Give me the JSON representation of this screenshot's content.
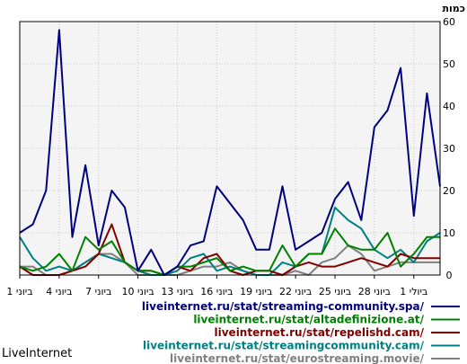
{
  "brand": "LiveInternet",
  "chart_data": {
    "type": "line",
    "ylabel": "כמות",
    "ylim": [
      0,
      60
    ],
    "yticks": [
      0,
      10,
      20,
      30,
      40,
      50,
      60
    ],
    "grid": true,
    "legend_position": "bottom-right",
    "x_tick_labels": [
      "1 ביוני",
      "4 ביוני",
      "7 ביוני",
      "10 ביוני",
      "13 ביוני",
      "16 ביוני",
      "19 ביוני",
      "22 ביוני",
      "25 ביוני",
      "28 ביוני",
      "1 ביולי"
    ],
    "x_tick_indices": [
      0,
      3,
      6,
      9,
      12,
      15,
      18,
      21,
      24,
      27,
      30
    ],
    "series": [
      {
        "name": "liveinternet.ru/stat/streaming-community.spa/",
        "color": "#000080",
        "values": [
          10,
          12,
          20,
          58,
          9,
          26,
          7,
          20,
          16,
          1,
          6,
          0,
          2,
          7,
          8,
          21,
          17,
          13,
          6,
          6,
          21,
          6,
          8,
          10,
          18,
          22,
          13,
          35,
          39,
          49,
          14,
          43,
          21
        ]
      },
      {
        "name": "liveinternet.ru/stat/altadefinizione.at/",
        "color": "#008000",
        "values": [
          2,
          1,
          2,
          5,
          1,
          9,
          6,
          8,
          3,
          1,
          1,
          0,
          2,
          2,
          3,
          4,
          1,
          2,
          1,
          1,
          7,
          2,
          5,
          5,
          11,
          7,
          6,
          6,
          10,
          2,
          5,
          9,
          9
        ]
      },
      {
        "name": "liveinternet.ru/stat/repelishd.cam/",
        "color": "#800000",
        "values": [
          2,
          0,
          0,
          0,
          1,
          2,
          5,
          12,
          3,
          1,
          1,
          0,
          2,
          1,
          4,
          5,
          1,
          0,
          1,
          1,
          0,
          2,
          3,
          2,
          2,
          3,
          4,
          3,
          2,
          5,
          4,
          4,
          4
        ]
      },
      {
        "name": "liveinternet.ru/stat/streamingcommunity.cam/",
        "color": "#008080",
        "values": [
          9,
          4,
          1,
          2,
          1,
          3,
          5,
          4,
          3,
          1,
          0,
          0,
          1,
          4,
          5,
          1,
          2,
          1,
          0,
          0,
          3,
          2,
          5,
          5,
          16,
          13,
          11,
          6,
          4,
          6,
          3,
          8,
          10
        ]
      },
      {
        "name": "liveinternet.ru/stat/eurostreaming.movie/",
        "color": "#808080",
        "values": [
          2,
          2,
          0,
          0,
          1,
          3,
          5,
          5,
          3,
          0,
          0,
          0,
          0,
          1,
          2,
          2,
          3,
          1,
          0,
          0,
          0,
          1,
          0,
          3,
          4,
          7,
          5,
          1,
          2,
          3,
          3,
          3,
          3
        ]
      }
    ]
  }
}
